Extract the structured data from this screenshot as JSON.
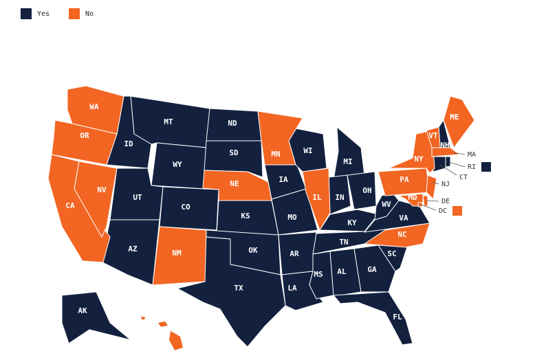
{
  "legend": [
    {
      "label": "Yes",
      "color": "#13213f",
      "states": [
        "MT",
        "ID",
        "WY",
        "ND",
        "SD",
        "UT",
        "CO",
        "AZ",
        "KS",
        "OK",
        "TX",
        "IA",
        "MO",
        "AR",
        "LA",
        "WI",
        "MI",
        "IN",
        "OH",
        "KY",
        "TN",
        "MS",
        "AL",
        "GA",
        "FL",
        "SC",
        "VA",
        "WV",
        "NH",
        "CT",
        "RI",
        "AK"
      ]
    },
    {
      "label": "No",
      "color": "#f26522",
      "states": [
        "WA",
        "OR",
        "CA",
        "NV",
        "NM",
        "NE",
        "MN",
        "IL",
        "NY",
        "VT",
        "ME",
        "PA",
        "NJ",
        "MA",
        "MD",
        "DE",
        "NC",
        "DC",
        "HI"
      ]
    }
  ]
}
